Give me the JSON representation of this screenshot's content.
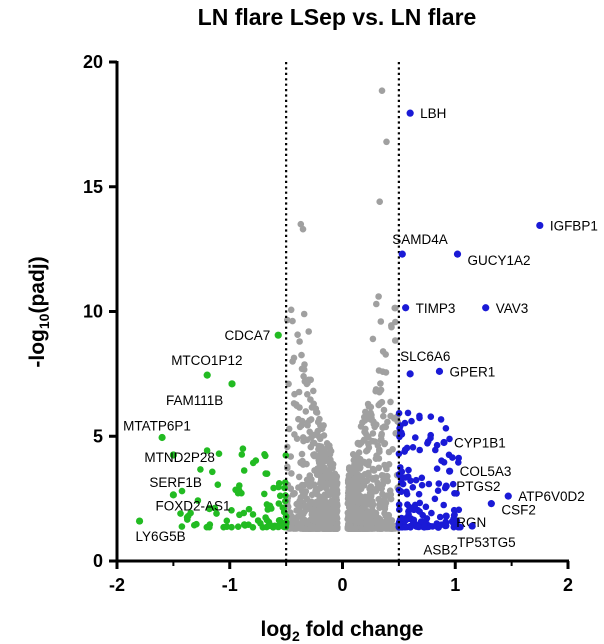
{
  "chart_data": {
    "type": "scatter",
    "title": "LN flare LSep vs. LN flare",
    "xlabel_parts": [
      "log",
      "2",
      " fold change"
    ],
    "ylabel_parts": [
      "-log",
      "10",
      "(padj)"
    ],
    "xlim": [
      -2,
      2
    ],
    "ylim": [
      0,
      20
    ],
    "x_ticks": [
      "-2",
      "-1",
      "0",
      "1",
      "2"
    ],
    "x_tick_values": [
      -2,
      -1,
      0,
      1,
      2
    ],
    "y_ticks": [
      "0",
      "5",
      "10",
      "15",
      "20"
    ],
    "y_tick_values": [
      0,
      5,
      10,
      15,
      20
    ],
    "thresholds_x": [
      -0.5,
      0.5
    ],
    "colors": {
      "down": "#22bb22",
      "up": "#1a1ad6",
      "ns": "#a0a0a0"
    },
    "labeled_genes": [
      {
        "name": "LBH",
        "x": 0.6,
        "y": 17.95,
        "group": "up"
      },
      {
        "name": "IGFBP1",
        "x": 1.75,
        "y": 13.45,
        "group": "up"
      },
      {
        "name": "SAMD4A",
        "x": 0.53,
        "y": 12.3,
        "group": "up"
      },
      {
        "name": "GUCY1A2",
        "x": 1.02,
        "y": 12.3,
        "group": "up"
      },
      {
        "name": "TIMP3",
        "x": 0.56,
        "y": 10.15,
        "group": "up"
      },
      {
        "name": "VAV3",
        "x": 1.27,
        "y": 10.15,
        "group": "up"
      },
      {
        "name": "SLC6A6",
        "x": 0.6,
        "y": 7.5,
        "group": "up"
      },
      {
        "name": "GPER1",
        "x": 0.86,
        "y": 7.6,
        "group": "up"
      },
      {
        "name": "CYP1B1",
        "x": 0.9,
        "y": 4.75,
        "group": "up"
      },
      {
        "name": "COL5A3",
        "x": 0.95,
        "y": 3.6,
        "group": "up"
      },
      {
        "name": "PTGS2",
        "x": 0.92,
        "y": 3.0,
        "group": "up"
      },
      {
        "name": "ATP6V0D2",
        "x": 1.47,
        "y": 2.6,
        "group": "up"
      },
      {
        "name": "CSF2",
        "x": 1.32,
        "y": 2.3,
        "group": "up"
      },
      {
        "name": "RGN",
        "x": 0.92,
        "y": 1.8,
        "group": "up"
      },
      {
        "name": "TP53TG5",
        "x": 1.15,
        "y": 1.4,
        "group": "up"
      },
      {
        "name": "ASB2",
        "x": 0.85,
        "y": 1.35,
        "group": "up"
      },
      {
        "name": "CDCA7",
        "x": -0.57,
        "y": 9.05,
        "group": "down"
      },
      {
        "name": "MTCO1P12",
        "x": -1.2,
        "y": 7.45,
        "group": "down"
      },
      {
        "name": "FAM111B",
        "x": -0.98,
        "y": 7.1,
        "group": "down"
      },
      {
        "name": "MTATP6P1",
        "x": -1.6,
        "y": 4.95,
        "group": "down"
      },
      {
        "name": "MTND2P28",
        "x": -1.5,
        "y": 4.25,
        "group": "down"
      },
      {
        "name": "SERF1B",
        "x": -1.5,
        "y": 2.65,
        "group": "down"
      },
      {
        "name": "FOXD2-AS1",
        "x": -1.18,
        "y": 2.1,
        "group": "down"
      },
      {
        "name": "LY6G5B",
        "x": -1.8,
        "y": 1.6,
        "group": "down"
      }
    ]
  }
}
